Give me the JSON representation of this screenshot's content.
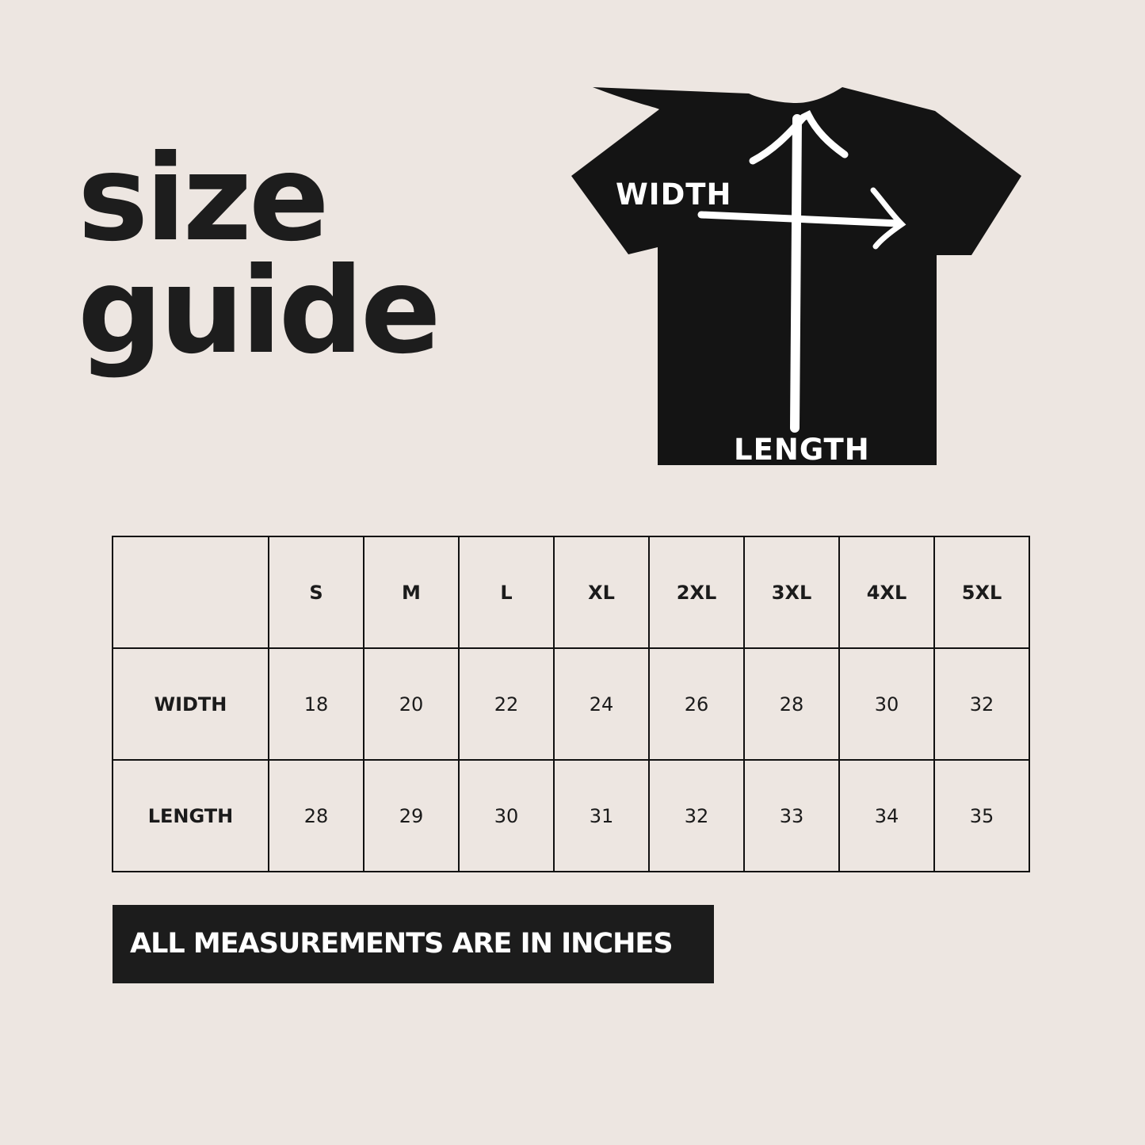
{
  "title": {
    "line1": "size",
    "line2": "guide"
  },
  "diagram": {
    "width_label": "WIDTH",
    "length_label": "LENGTH",
    "garment_color": "#141414",
    "arrow_color": "#ffffff"
  },
  "table": {
    "header": [
      "",
      "S",
      "M",
      "L",
      "XL",
      "2XL",
      "3XL",
      "4XL",
      "5XL"
    ],
    "rows": [
      {
        "label": "WIDTH",
        "values": [
          "18",
          "20",
          "22",
          "24",
          "26",
          "28",
          "30",
          "32"
        ]
      },
      {
        "label": "LENGTH",
        "values": [
          "28",
          "29",
          "30",
          "31",
          "32",
          "33",
          "34",
          "35"
        ]
      }
    ]
  },
  "note": "ALL MEASUREMENTS ARE IN INCHES",
  "colors": {
    "background": "#ede6e1",
    "text": "#1b1b1b",
    "note_bg": "#1c1c1c"
  }
}
